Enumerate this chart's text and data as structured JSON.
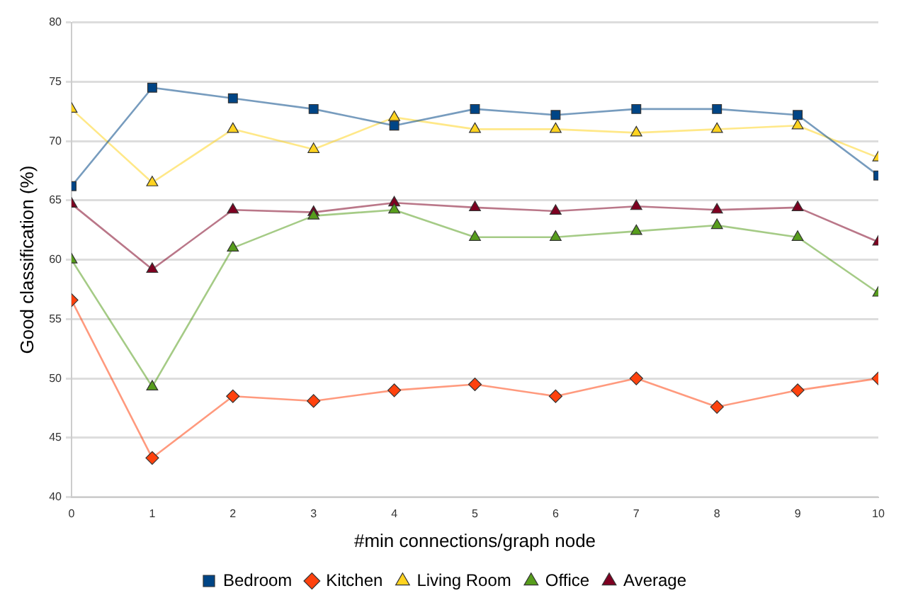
{
  "chart_data": {
    "type": "line",
    "xlabel": "#min connections/graph node",
    "ylabel": "Good classification (%)",
    "x": [
      0,
      1,
      2,
      3,
      4,
      5,
      6,
      7,
      8,
      9,
      10
    ],
    "xlim": [
      0,
      10
    ],
    "xticks": [
      0,
      1,
      2,
      3,
      4,
      5,
      6,
      7,
      8,
      9,
      10
    ],
    "ylim": [
      40,
      80
    ],
    "yticks": [
      40,
      45,
      50,
      55,
      60,
      65,
      70,
      75,
      80
    ],
    "grid": "y",
    "legend": "bottom",
    "series": [
      {
        "name": "Bedroom",
        "color": "#004586",
        "marker": "square",
        "values": [
          66.2,
          74.5,
          73.6,
          72.7,
          71.3,
          72.7,
          72.2,
          72.7,
          72.7,
          72.2,
          67.1
        ]
      },
      {
        "name": "Kitchen",
        "color": "#ff420e",
        "marker": "diamond",
        "values": [
          56.6,
          43.3,
          48.5,
          48.1,
          49.0,
          49.5,
          48.5,
          50.0,
          47.6,
          49.0,
          50.0
        ]
      },
      {
        "name": "Living Room",
        "color": "#ffd320",
        "marker": "triangle",
        "values": [
          72.7,
          66.5,
          71.0,
          69.3,
          72.0,
          71.0,
          71.0,
          70.7,
          71.0,
          71.3,
          68.6
        ]
      },
      {
        "name": "Office",
        "color": "#579d1c",
        "marker": "triangle",
        "values": [
          60.0,
          49.3,
          61.0,
          63.7,
          64.2,
          61.9,
          61.9,
          62.4,
          62.9,
          61.9,
          57.2
        ]
      },
      {
        "name": "Average",
        "color": "#7e0021",
        "marker": "triangle",
        "values": [
          64.7,
          59.2,
          64.2,
          64.0,
          64.8,
          64.4,
          64.1,
          64.5,
          64.2,
          64.4,
          61.5
        ]
      }
    ]
  }
}
